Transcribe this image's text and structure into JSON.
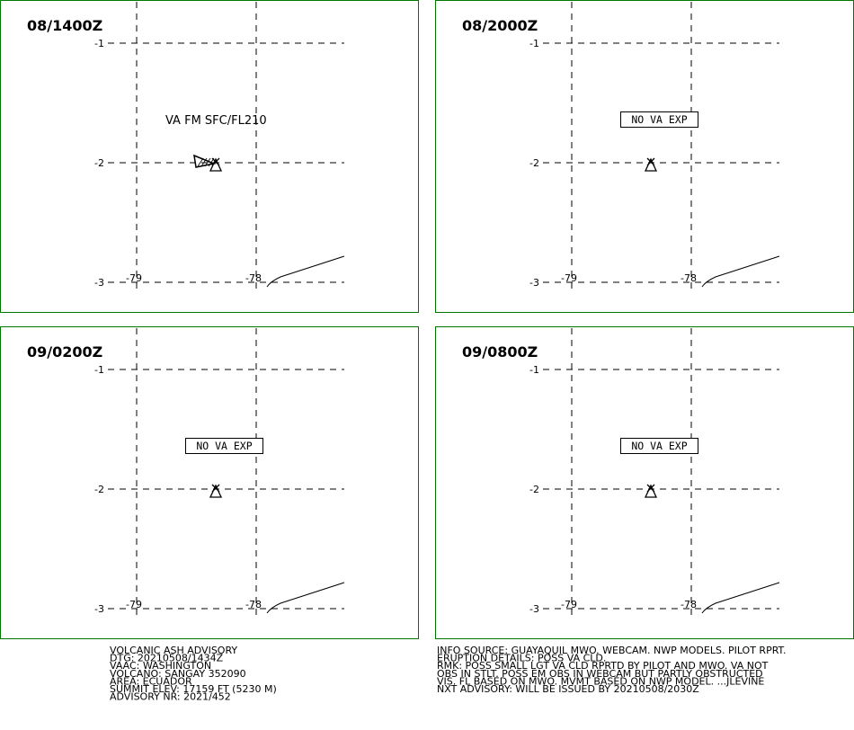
{
  "panels": [
    {
      "time": "08/1400Z",
      "annotation": "VA FM SFC/FL210",
      "lat_labels": [
        "-1",
        "-2",
        "-3"
      ],
      "lon_labels": [
        "-79",
        "-78"
      ]
    },
    {
      "time": "08/2000Z",
      "annotation": "NO VA EXP",
      "lat_labels": [
        "-1",
        "-2",
        "-3"
      ],
      "lon_labels": [
        "-79",
        "-78"
      ]
    },
    {
      "time": "09/0200Z",
      "annotation": "NO VA EXP",
      "lat_labels": [
        "-1",
        "-2",
        "-3"
      ],
      "lon_labels": [
        "-79",
        "-78"
      ]
    },
    {
      "time": "09/0800Z",
      "annotation": "NO VA EXP",
      "lat_labels": [
        "-1",
        "-2",
        "-3"
      ],
      "lon_labels": [
        "-79",
        "-78"
      ]
    }
  ],
  "footer": {
    "left": [
      "VOLCANIC ASH ADVISORY",
      "DTG: 20210508/1434Z",
      "VAAC: WASHINGTON",
      "VOLCANO: SANGAY 352090",
      "AREA: ECUADOR",
      "SUMMIT ELEV: 17159 FT (5230 M)",
      "ADVISORY NR: 2021/452"
    ],
    "right": [
      "INFO SOURCE: GUAYAQUIL MWO. WEBCAM. NWP MODELS. PILOT RPRT.",
      "ERUPTION DETAILS: POSS VA CLD.",
      "RMK: POSS SMALL LGT VA CLD RPRTD BY PILOT AND MWO. VA NOT",
      "OBS IN STLT. POSS EM OBS IN WEBCAM BUT PARTLY OBSTRUCTED",
      "VIS. FL BASED ON MWO. MVMT BASED ON NWP MODEL. ...JLEVINE",
      "NXT ADVISORY: WILL BE ISSUED BY 20210508/2030Z"
    ]
  }
}
